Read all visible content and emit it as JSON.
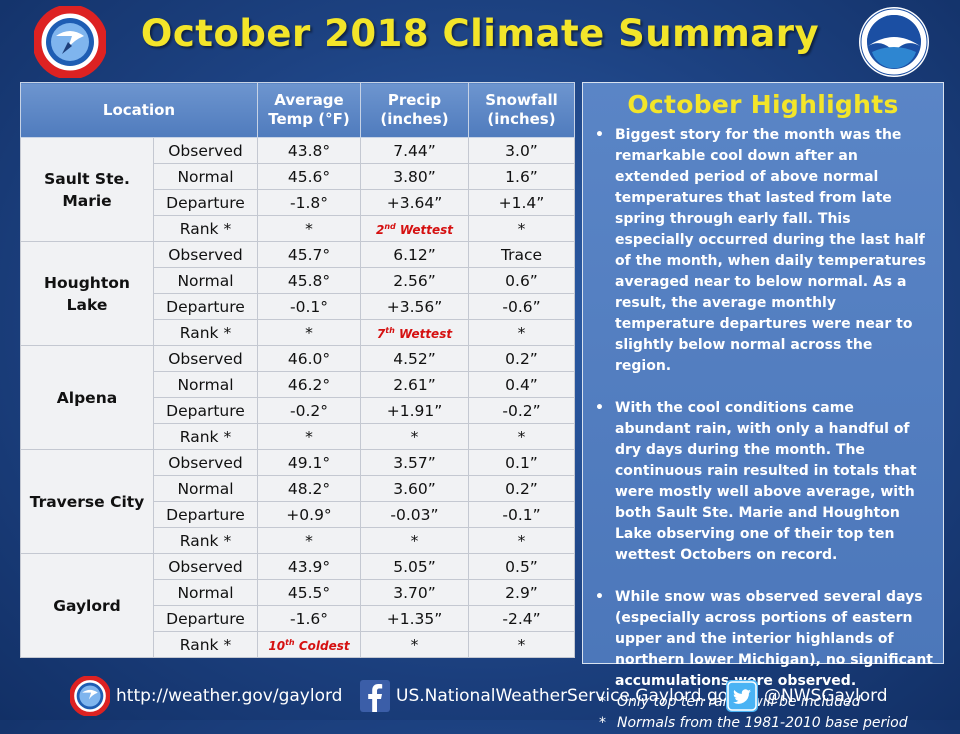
{
  "title": "October 2018 Climate Summary",
  "colors": {
    "title": "#f3e52a",
    "rank_highlight": "#d51010",
    "background": "#1d4282"
  },
  "table": {
    "headers": {
      "location": "Location",
      "temp": [
        "Average",
        "Temp (°F)"
      ],
      "precip": [
        "Precip",
        "(inches)"
      ],
      "snow": [
        "Snowfall",
        "(inches)"
      ]
    },
    "locations": [
      {
        "name": "Sault Ste. Marie",
        "rows": [
          {
            "type": "Observed",
            "temp": "43.8°",
            "precip": "7.44”",
            "snow": "3.0”"
          },
          {
            "type": "Normal",
            "temp": "45.6°",
            "precip": "3.80”",
            "snow": "1.6”"
          },
          {
            "type": "Departure",
            "temp": "-1.8°",
            "precip": "+3.64”",
            "snow": "+1.4”"
          },
          {
            "type": "Rank *",
            "temp": "*",
            "precip": {
              "num": "2",
              "sup": "nd",
              "rest": " Wettest"
            },
            "snow": "*"
          }
        ]
      },
      {
        "name": "Houghton Lake",
        "rows": [
          {
            "type": "Observed",
            "temp": "45.7°",
            "precip": "6.12”",
            "snow": "Trace"
          },
          {
            "type": "Normal",
            "temp": "45.8°",
            "precip": "2.56”",
            "snow": "0.6”"
          },
          {
            "type": "Departure",
            "temp": "-0.1°",
            "precip": "+3.56”",
            "snow": "-0.6”"
          },
          {
            "type": "Rank *",
            "temp": "*",
            "precip": {
              "num": "7",
              "sup": "th",
              "rest": " Wettest"
            },
            "snow": "*"
          }
        ]
      },
      {
        "name": "Alpena",
        "rows": [
          {
            "type": "Observed",
            "temp": "46.0°",
            "precip": "4.52”",
            "snow": "0.2”"
          },
          {
            "type": "Normal",
            "temp": "46.2°",
            "precip": "2.61”",
            "snow": "0.4”"
          },
          {
            "type": "Departure",
            "temp": "-0.2°",
            "precip": "+1.91”",
            "snow": "-0.2”"
          },
          {
            "type": "Rank *",
            "temp": "*",
            "precip": "*",
            "snow": "*"
          }
        ]
      },
      {
        "name": "Traverse City",
        "rows": [
          {
            "type": "Observed",
            "temp": "49.1°",
            "precip": "3.57”",
            "snow": "0.1”"
          },
          {
            "type": "Normal",
            "temp": "48.2°",
            "precip": "3.60”",
            "snow": "0.2”"
          },
          {
            "type": "Departure",
            "temp": "+0.9°",
            "precip": "-0.03”",
            "snow": "-0.1”"
          },
          {
            "type": "Rank *",
            "temp": "*",
            "precip": "*",
            "snow": "*"
          }
        ]
      },
      {
        "name": "Gaylord",
        "rows": [
          {
            "type": "Observed",
            "temp": "43.9°",
            "precip": "5.05”",
            "snow": "0.5”"
          },
          {
            "type": "Normal",
            "temp": "45.5°",
            "precip": "3.70”",
            "snow": "2.9”"
          },
          {
            "type": "Departure",
            "temp": "-1.6°",
            "precip": "+1.35”",
            "snow": "-2.4”"
          },
          {
            "type": "Rank *",
            "temp": {
              "num": "10",
              "sup": "th",
              "rest": " Coldest"
            },
            "precip": "*",
            "snow": "*"
          }
        ]
      }
    ]
  },
  "highlights": {
    "title": "October Highlights",
    "bullets": [
      "Biggest story for the month was the remarkable cool down after an extended period of above normal temperatures that lasted from late spring through early fall. This especially occurred during the last half of the month, when daily temperatures averaged near to below normal.  As a result, the average monthly temperature departures were near to slightly below normal across the region.",
      "With the cool conditions came abundant rain, with only a handful of dry days during the month. The continuous rain resulted in totals that were mostly well above average, with both Sault Ste. Marie and Houghton Lake observing one of their top ten wettest Octobers on record.",
      "While snow was observed several days (especially across portions of eastern upper and the interior highlands of northern lower Michigan), no significant accumulations were observed."
    ],
    "notes": [
      "Only top ten ranks will be included",
      "Normals from the 1981-2010 base period"
    ]
  },
  "footer": {
    "website": "http://weather.gov/gaylord",
    "facebook": "US.NationalWeatherService.Gaylord.gov",
    "twitter": "@NWSGaylord"
  },
  "icons": {
    "left_logo": "nws-logo-icon",
    "right_logo": "noaa-logo-icon",
    "footer": [
      "nws-logo-icon",
      "facebook-icon",
      "twitter-icon"
    ]
  }
}
